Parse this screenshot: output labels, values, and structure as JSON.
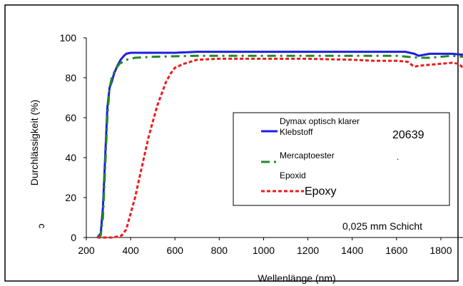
{
  "chart_data": {
    "type": "line",
    "title": "",
    "xlabel": "Wellenlänge (nm)",
    "ylabel": "Durchlässigkeit  (%)",
    "xlim": [
      200,
      1900
    ],
    "ylim": [
      0,
      100
    ],
    "x_ticks": [
      "200",
      "400",
      "600",
      "800",
      "1000",
      "1200",
      "1400",
      "1600",
      "1800"
    ],
    "y_ticks": [
      "0",
      "20",
      "40",
      "60",
      "80",
      "100"
    ],
    "grid": false,
    "legend_position": "center-right",
    "annotation": "0,025 mm Schicht",
    "legend_overlay": {
      "code": "20639",
      "dot": "."
    },
    "series": [
      {
        "name": "Dymax optisch klarer Klebstoff",
        "color": "#1f1fe0",
        "style": "solid",
        "x": [
          250,
          265,
          275,
          285,
          295,
          305,
          315,
          325,
          340,
          355,
          370,
          380,
          400,
          450,
          500,
          600,
          700,
          800,
          1000,
          1200,
          1400,
          1600,
          1640,
          1660,
          1680,
          1700,
          1750,
          1800,
          1850,
          1900
        ],
        "y": [
          0,
          2,
          15,
          40,
          65,
          75,
          78,
          82,
          86,
          89,
          91,
          92,
          92.5,
          92.5,
          92.5,
          92.5,
          93,
          93,
          93,
          93,
          93,
          93,
          93,
          92.5,
          92,
          91,
          92,
          92,
          92,
          91.5
        ]
      },
      {
        "name": "Mercaptoester",
        "color": "#228b22",
        "style": "dashdot",
        "x": [
          250,
          265,
          275,
          285,
          295,
          305,
          315,
          330,
          350,
          380,
          420,
          500,
          700,
          900,
          1100,
          1300,
          1500,
          1600,
          1650,
          1700,
          1750,
          1800,
          1850,
          1900
        ],
        "y": [
          0,
          1,
          10,
          35,
          60,
          75,
          80,
          84,
          87,
          89,
          90,
          90.5,
          91,
          91,
          91,
          91,
          91,
          91,
          90.5,
          90,
          90,
          90.5,
          91,
          90.5
        ]
      },
      {
        "name": "Epoxid",
        "legend_label": "Epoxy",
        "color": "#ee1c1c",
        "style": "dashed",
        "x": [
          250,
          320,
          360,
          380,
          400,
          420,
          440,
          460,
          480,
          500,
          520,
          540,
          560,
          580,
          600,
          640,
          700,
          800,
          1000,
          1200,
          1400,
          1500,
          1600,
          1650,
          1680,
          1700,
          1750,
          1800,
          1850,
          1880,
          1900
        ],
        "y": [
          0,
          0,
          1,
          4,
          12,
          20,
          30,
          40,
          50,
          58,
          66,
          72,
          78,
          82,
          85,
          87,
          89,
          89.5,
          89.5,
          89.5,
          89,
          88.5,
          88.5,
          88,
          85.5,
          86,
          86.5,
          87,
          87.5,
          87,
          85
        ]
      }
    ]
  }
}
